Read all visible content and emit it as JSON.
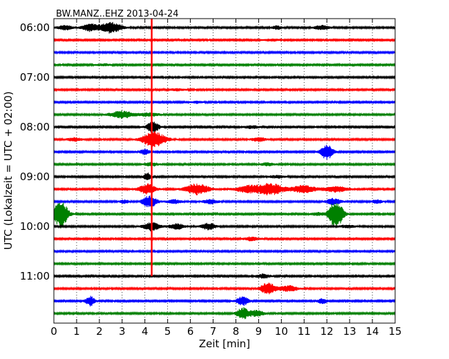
{
  "chart_data": {
    "type": "line",
    "title": "BW.MANZ..EHZ 2013-04-24",
    "xlabel": "Zeit  [min]",
    "ylabel": "UTC (Lokalzeit = UTC + 02:00)",
    "xlim": [
      0,
      15
    ],
    "x_ticks": [
      0,
      1,
      2,
      3,
      4,
      5,
      6,
      7,
      8,
      9,
      10,
      11,
      12,
      13,
      14,
      15
    ],
    "y_tick_labels": [
      "06:00",
      "07:00",
      "08:00",
      "09:00",
      "10:00",
      "11:00"
    ],
    "grid": "vertical dotted",
    "trace_colors": [
      "#000000",
      "#ff0000",
      "#0000ff",
      "#008000"
    ],
    "traces": [
      {
        "start": "06:00",
        "events": [
          {
            "t": 0.5,
            "amp": 0.35,
            "w": 0.3
          },
          {
            "t": 1.6,
            "amp": 0.55,
            "w": 0.35
          },
          {
            "t": 2.5,
            "amp": 0.85,
            "w": 0.45
          },
          {
            "t": 9.8,
            "amp": 0.25,
            "w": 0.2
          },
          {
            "t": 11.8,
            "amp": 0.35,
            "w": 0.3
          }
        ]
      },
      {
        "start": "06:15",
        "events": [
          {
            "t": 9.6,
            "amp": 0.15,
            "w": 0.3
          }
        ]
      },
      {
        "start": "06:30",
        "events": []
      },
      {
        "start": "06:45",
        "events": [
          {
            "t": 2.2,
            "amp": 0.15,
            "w": 0.3
          }
        ]
      },
      {
        "start": "07:00",
        "events": []
      },
      {
        "start": "07:15",
        "events": [
          {
            "t": 5.4,
            "amp": 0.15,
            "w": 0.3
          }
        ]
      },
      {
        "start": "07:30",
        "events": [
          {
            "t": 6.3,
            "amp": 0.15,
            "w": 0.2
          }
        ]
      },
      {
        "start": "07:45",
        "events": [
          {
            "t": 3.0,
            "amp": 0.55,
            "w": 0.5
          },
          {
            "t": 4.2,
            "amp": 0.3,
            "w": 0.4
          }
        ]
      },
      {
        "start": "08:00",
        "events": [
          {
            "t": 4.35,
            "amp": 0.9,
            "w": 0.25
          },
          {
            "t": 8.7,
            "amp": 0.2,
            "w": 0.3
          }
        ]
      },
      {
        "start": "08:15",
        "events": [
          {
            "t": 0.9,
            "amp": 0.25,
            "w": 0.3
          },
          {
            "t": 4.4,
            "amp": 1.2,
            "w": 0.5
          },
          {
            "t": 9.0,
            "amp": 0.3,
            "w": 0.3
          }
        ]
      },
      {
        "start": "08:30",
        "events": [
          {
            "t": 4.0,
            "amp": 0.4,
            "w": 0.2
          },
          {
            "t": 12.0,
            "amp": 1.2,
            "w": 0.25
          }
        ]
      },
      {
        "start": "08:45",
        "events": [
          {
            "t": 4.3,
            "amp": 0.25,
            "w": 0.3
          },
          {
            "t": 9.4,
            "amp": 0.2,
            "w": 0.3
          }
        ]
      },
      {
        "start": "09:00",
        "events": [
          {
            "t": 4.1,
            "amp": 0.6,
            "w": 0.15
          },
          {
            "t": 9.8,
            "amp": 0.2,
            "w": 0.3
          }
        ]
      },
      {
        "start": "09:15",
        "events": [
          {
            "t": 4.1,
            "amp": 0.8,
            "w": 0.35
          },
          {
            "t": 6.3,
            "amp": 0.85,
            "w": 0.5
          },
          {
            "t": 8.5,
            "amp": 0.5,
            "w": 0.5
          },
          {
            "t": 9.5,
            "amp": 0.9,
            "w": 0.6
          },
          {
            "t": 11.0,
            "amp": 0.6,
            "w": 0.5
          },
          {
            "t": 12.4,
            "amp": 0.45,
            "w": 0.5
          }
        ]
      },
      {
        "start": "09:30",
        "events": [
          {
            "t": 3.1,
            "amp": 0.25,
            "w": 0.2
          },
          {
            "t": 4.2,
            "amp": 0.95,
            "w": 0.3
          },
          {
            "t": 5.3,
            "amp": 0.3,
            "w": 0.3
          },
          {
            "t": 6.9,
            "amp": 0.35,
            "w": 0.3
          },
          {
            "t": 12.3,
            "amp": 0.5,
            "w": 0.3
          },
          {
            "t": 14.2,
            "amp": 0.3,
            "w": 0.2
          }
        ]
      },
      {
        "start": "09:45",
        "events": [
          {
            "t": 0.3,
            "amp": 2.2,
            "w": 0.3
          },
          {
            "t": 12.4,
            "amp": 2.2,
            "w": 0.3
          },
          {
            "t": 11.6,
            "amp": 0.2,
            "w": 0.3
          }
        ]
      },
      {
        "start": "10:00",
        "events": [
          {
            "t": 4.3,
            "amp": 0.7,
            "w": 0.35
          },
          {
            "t": 5.4,
            "amp": 0.45,
            "w": 0.3
          },
          {
            "t": 6.8,
            "amp": 0.5,
            "w": 0.3
          },
          {
            "t": 12.9,
            "amp": 0.2,
            "w": 0.3
          }
        ]
      },
      {
        "start": "10:15",
        "events": [
          {
            "t": 8.7,
            "amp": 0.3,
            "w": 0.3
          }
        ]
      },
      {
        "start": "10:30",
        "events": []
      },
      {
        "start": "10:45",
        "events": []
      },
      {
        "start": "11:00",
        "events": [
          {
            "t": 9.2,
            "amp": 0.3,
            "w": 0.3
          }
        ]
      },
      {
        "start": "11:15",
        "events": [
          {
            "t": 9.4,
            "amp": 0.95,
            "w": 0.3
          },
          {
            "t": 10.3,
            "amp": 0.45,
            "w": 0.4
          }
        ]
      },
      {
        "start": "11:30",
        "events": [
          {
            "t": 1.6,
            "amp": 0.75,
            "w": 0.2
          },
          {
            "t": 8.3,
            "amp": 0.7,
            "w": 0.25
          },
          {
            "t": 11.8,
            "amp": 0.4,
            "w": 0.2
          }
        ]
      },
      {
        "start": "11:45",
        "events": [
          {
            "t": 8.3,
            "amp": 0.9,
            "w": 0.25
          },
          {
            "t": 8.9,
            "amp": 0.5,
            "w": 0.3
          }
        ]
      }
    ],
    "spikes": [
      {
        "x": 4.3,
        "from": "06:00",
        "to": "11:00",
        "color": "#ff0000"
      }
    ]
  }
}
